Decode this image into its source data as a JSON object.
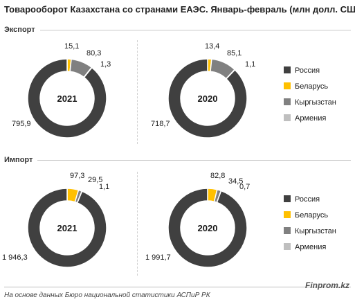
{
  "title": "Товарооборот Казахстана со странами ЕАЭС. Январь-февраль (млн долл. США)",
  "sections": [
    {
      "label": "Экспорт"
    },
    {
      "label": "Импорт"
    }
  ],
  "legend": [
    {
      "name": "Россия",
      "color": "#404040"
    },
    {
      "name": "Беларусь",
      "color": "#FFC000"
    },
    {
      "name": "Кыргызстан",
      "color": "#808080"
    },
    {
      "name": "Армения",
      "color": "#BFBFBF"
    }
  ],
  "chart_data": [
    {
      "type": "pie",
      "section": "Экспорт",
      "center_label": "2021",
      "categories": [
        "Россия",
        "Беларусь",
        "Кыргызстан",
        "Армения"
      ],
      "values": [
        795.9,
        15.1,
        80.3,
        1.3
      ],
      "labels": [
        "795,9",
        "15,1",
        "80,3",
        "1,3"
      ]
    },
    {
      "type": "pie",
      "section": "Экспорт",
      "center_label": "2020",
      "categories": [
        "Россия",
        "Беларусь",
        "Кыргызстан",
        "Армения"
      ],
      "values": [
        718.7,
        13.4,
        85.1,
        1.1
      ],
      "labels": [
        "718,7",
        "13,4",
        "85,1",
        "1,1"
      ]
    },
    {
      "type": "pie",
      "section": "Импорт",
      "center_label": "2021",
      "categories": [
        "Россия",
        "Беларусь",
        "Кыргызстан",
        "Армения"
      ],
      "values": [
        1946.3,
        97.3,
        29.5,
        1.1
      ],
      "labels": [
        "1 946,3",
        "97,3",
        "29,5",
        "1,1"
      ]
    },
    {
      "type": "pie",
      "section": "Импорт",
      "center_label": "2020",
      "categories": [
        "Россия",
        "Беларусь",
        "Кыргызстан",
        "Армения"
      ],
      "values": [
        1991.7,
        82.8,
        34.5,
        0.7
      ],
      "labels": [
        "1 991,7",
        "82,8",
        "34,5",
        "0,7"
      ]
    }
  ],
  "footer": {
    "source": "На основе данных Бюро национальной статистики АСПиР РК",
    "brand": "Finprom.kz"
  }
}
